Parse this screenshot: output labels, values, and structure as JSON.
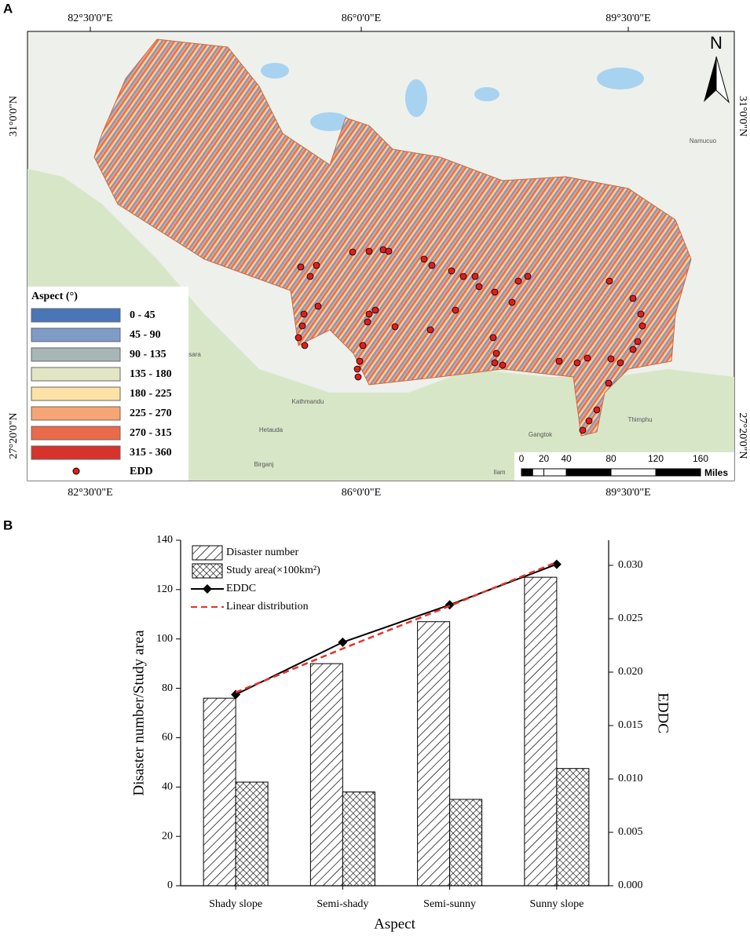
{
  "panel_labels": [
    "A",
    "B"
  ],
  "map": {
    "lon_labels": [
      "82°30'0\"E",
      "86°0'0\"E",
      "89°30'0\"E"
    ],
    "lat_labels": [
      "31°0'0\"N",
      "27°20'0\"N"
    ],
    "north": "N",
    "legend": {
      "title": "Aspect (°)",
      "classes": [
        {
          "label": "0 - 45",
          "color": "#4a76b8"
        },
        {
          "label": "45 - 90",
          "color": "#7f9bc8"
        },
        {
          "label": "90 - 135",
          "color": "#a6b7b6"
        },
        {
          "label": "135 - 180",
          "color": "#e3e6c4"
        },
        {
          "label": "180 - 225",
          "color": "#fde1a6"
        },
        {
          "label": "225 - 270",
          "color": "#f7a574"
        },
        {
          "label": "270 - 315",
          "color": "#ea6b4a"
        },
        {
          "label": "315 - 360",
          "color": "#d7322c"
        }
      ],
      "point_label": "EDD"
    },
    "scale_bar": {
      "ticks": [
        0,
        20,
        40,
        80,
        120,
        160
      ],
      "unit": "Miles"
    },
    "places": [
      "Namucuo",
      "Kathmandu",
      "Hetauda",
      "Birganj",
      "Ilam",
      "Gangtok",
      "Thimphu",
      "sara"
    ]
  },
  "chart_data": {
    "type": "bar",
    "x_label": "Aspect",
    "y_label": "Disaster number/Study area",
    "y2_label": "EDDC",
    "categories": [
      "Shady slope",
      "Semi-shady",
      "Semi-sunny",
      "Sunny slope"
    ],
    "series": [
      {
        "name": "Disaster number",
        "type": "bar",
        "values": [
          76,
          90,
          107,
          125
        ]
      },
      {
        "name": "Study area(×100km²)",
        "type": "bar",
        "values": [
          42,
          38,
          35,
          47.5
        ]
      },
      {
        "name": "EDDC",
        "type": "line",
        "axis": "y2",
        "color": "#000000",
        "values": [
          0.0179,
          0.0228,
          0.0263,
          0.0301
        ]
      },
      {
        "name": "Linear distribution",
        "type": "line",
        "axis": "y2",
        "color": "#e8312a",
        "values": [
          0.0181,
          0.0222,
          0.0262,
          0.0303
        ]
      }
    ],
    "ylim": [
      0,
      140
    ],
    "yticks": [
      0,
      20,
      40,
      60,
      80,
      100,
      120,
      140
    ],
    "y2lim": [
      0,
      0.03235
    ],
    "y2ticks": [
      {
        "value": 0,
        "label": "0.000"
      },
      {
        "value": 0.005,
        "label": "0.005"
      },
      {
        "value": 0.01,
        "label": "0.010"
      },
      {
        "value": 0.015,
        "label": "0.015"
      },
      {
        "value": 0.02,
        "label": "0.020"
      },
      {
        "value": 0.025,
        "label": "0.025"
      },
      {
        "value": 0.03,
        "label": "0.030"
      }
    ]
  }
}
